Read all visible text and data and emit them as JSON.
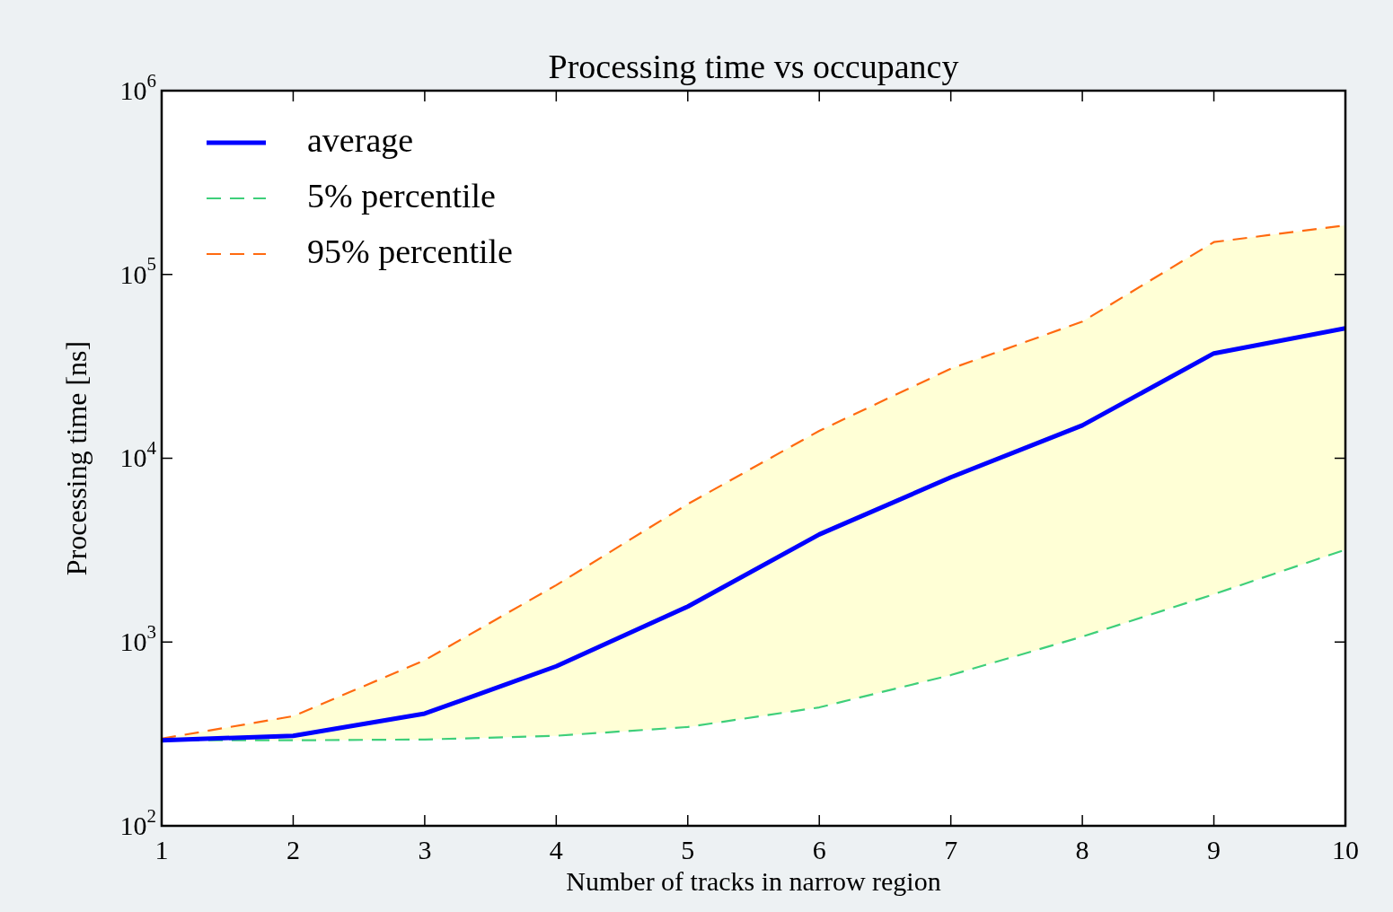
{
  "chart_data": {
    "type": "line",
    "title": "Processing time vs occupancy",
    "xlabel": "Number of tracks in narrow region",
    "ylabel": "Processing time [ns]",
    "x": [
      1,
      2,
      3,
      4,
      5,
      6,
      7,
      8,
      9,
      10
    ],
    "series": [
      {
        "name": "average",
        "color": "#0000ff",
        "line_style": "solid",
        "values": [
          292,
          309,
          408,
          738,
          1560,
          3850,
          7870,
          15100,
          37200,
          51000
        ],
        "lower": [
          292,
          292,
          295,
          309,
          345,
          441,
          661,
          1070,
          1820,
          3180
        ],
        "upper": [
          298,
          395,
          796,
          2040,
          5630,
          14100,
          30700,
          55400,
          150000,
          185000
        ]
      },
      {
        "name": "5% percentile",
        "color": "#3ecf7a",
        "line_style": "dashed",
        "values": [
          292,
          292,
          295,
          309,
          345,
          441,
          661,
          1070,
          1820,
          3180
        ]
      },
      {
        "name": "95% percentile",
        "color": "#ff6a10",
        "line_style": "dashed",
        "values": [
          298,
          395,
          796,
          2040,
          5630,
          14100,
          30700,
          55400,
          150000,
          185000
        ]
      }
    ],
    "xlim": [
      1,
      10
    ],
    "xticks": [
      1,
      2,
      3,
      4,
      5,
      6,
      7,
      8,
      9,
      10
    ],
    "ylim": [
      100,
      1000000
    ],
    "yticks": [
      {
        "value": 100,
        "label": "10$^{2}$"
      },
      {
        "value": 1000,
        "label": "10$^{3}$"
      },
      {
        "value": 10000,
        "label": "10$^{4}$"
      },
      {
        "value": 100000,
        "label": "10$^{5}$"
      },
      {
        "value": 1000000,
        "label": "10$^{6}$"
      }
    ],
    "log": "y",
    "grid": false,
    "legend": "top left",
    "marker": "none"
  }
}
